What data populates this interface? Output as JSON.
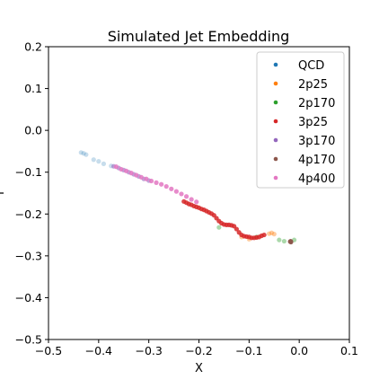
{
  "chart_data": {
    "type": "scatter",
    "title": "Simulated Jet Embedding",
    "xlabel": "X",
    "ylabel": "Y",
    "xlim": [
      -0.5,
      0.1
    ],
    "ylim": [
      -0.5,
      0.2
    ],
    "xticks": [
      -0.5,
      -0.4,
      -0.3,
      -0.2,
      -0.1,
      0.0,
      0.1
    ],
    "xtick_labels": [
      "−0.5",
      "−0.4",
      "−0.3",
      "−0.2",
      "−0.1",
      "0.0",
      "0.1"
    ],
    "yticks": [
      -0.5,
      -0.4,
      -0.3,
      -0.2,
      -0.1,
      0.0,
      0.1,
      0.2
    ],
    "ytick_labels": [
      "−0.5",
      "−0.4",
      "−0.3",
      "−0.2",
      "−0.1",
      "0.0",
      "0.1",
      "0.2"
    ],
    "grid": false,
    "legend_position": "top-right",
    "series": [
      {
        "name": "QCD",
        "color": "#1f77b4",
        "alpha": 0.25,
        "points": [
          [
            -0.435,
            -0.053
          ],
          [
            -0.43,
            -0.055
          ],
          [
            -0.425,
            -0.058
          ],
          [
            -0.41,
            -0.07
          ],
          [
            -0.4,
            -0.074
          ],
          [
            -0.39,
            -0.08
          ],
          [
            -0.375,
            -0.085
          ]
        ]
      },
      {
        "name": "2p25",
        "color": "#ff7f0e",
        "alpha": 0.4,
        "points": [
          [
            -0.06,
            -0.247
          ],
          [
            -0.055,
            -0.245
          ],
          [
            -0.05,
            -0.248
          ],
          [
            -0.1,
            -0.26
          ],
          [
            -0.115,
            -0.255
          ]
        ]
      },
      {
        "name": "2p170",
        "color": "#2ca02c",
        "alpha": 0.4,
        "points": [
          [
            -0.04,
            -0.262
          ],
          [
            -0.03,
            -0.265
          ],
          [
            -0.01,
            -0.262
          ],
          [
            -0.16,
            -0.232
          ],
          [
            -0.085,
            -0.255
          ]
        ]
      },
      {
        "name": "3p25",
        "color": "#d62728",
        "alpha": 0.85,
        "points": [
          [
            -0.23,
            -0.17
          ],
          [
            -0.225,
            -0.173
          ],
          [
            -0.22,
            -0.176
          ],
          [
            -0.215,
            -0.178
          ],
          [
            -0.21,
            -0.181
          ],
          [
            -0.205,
            -0.183
          ],
          [
            -0.2,
            -0.185
          ],
          [
            -0.195,
            -0.188
          ],
          [
            -0.19,
            -0.19
          ],
          [
            -0.185,
            -0.193
          ],
          [
            -0.18,
            -0.196
          ],
          [
            -0.175,
            -0.199
          ],
          [
            -0.17,
            -0.203
          ],
          [
            -0.165,
            -0.21
          ],
          [
            -0.16,
            -0.217
          ],
          [
            -0.155,
            -0.222
          ],
          [
            -0.15,
            -0.225
          ],
          [
            -0.145,
            -0.226
          ],
          [
            -0.14,
            -0.226
          ],
          [
            -0.135,
            -0.227
          ],
          [
            -0.13,
            -0.229
          ],
          [
            -0.125,
            -0.236
          ],
          [
            -0.12,
            -0.244
          ],
          [
            -0.115,
            -0.25
          ],
          [
            -0.11,
            -0.253
          ],
          [
            -0.105,
            -0.254
          ],
          [
            -0.1,
            -0.255
          ],
          [
            -0.095,
            -0.257
          ],
          [
            -0.09,
            -0.257
          ],
          [
            -0.085,
            -0.256
          ],
          [
            -0.08,
            -0.255
          ],
          [
            -0.075,
            -0.252
          ],
          [
            -0.07,
            -0.25
          ]
        ]
      },
      {
        "name": "3p170",
        "color": "#9467bd",
        "alpha": 0.6,
        "points": [
          [
            -0.37,
            -0.086
          ],
          [
            -0.36,
            -0.09
          ],
          [
            -0.35,
            -0.095
          ],
          [
            -0.34,
            -0.1
          ],
          [
            -0.33,
            -0.105
          ],
          [
            -0.32,
            -0.11
          ],
          [
            -0.31,
            -0.116
          ],
          [
            -0.3,
            -0.12
          ]
        ]
      },
      {
        "name": "4p170",
        "color": "#8c564b",
        "alpha": 0.9,
        "points": [
          [
            -0.017,
            -0.265
          ],
          [
            -0.0165,
            -0.267
          ],
          [
            -0.018,
            -0.266
          ]
        ]
      },
      {
        "name": "4p400",
        "color": "#e377c2",
        "alpha": 0.85,
        "points": [
          [
            -0.365,
            -0.087
          ],
          [
            -0.355,
            -0.093
          ],
          [
            -0.345,
            -0.097
          ],
          [
            -0.335,
            -0.102
          ],
          [
            -0.325,
            -0.107
          ],
          [
            -0.315,
            -0.112
          ],
          [
            -0.305,
            -0.116
          ],
          [
            -0.295,
            -0.121
          ],
          [
            -0.285,
            -0.125
          ],
          [
            -0.275,
            -0.129
          ],
          [
            -0.265,
            -0.134
          ],
          [
            -0.255,
            -0.14
          ],
          [
            -0.245,
            -0.146
          ],
          [
            -0.235,
            -0.152
          ],
          [
            -0.225,
            -0.158
          ],
          [
            -0.215,
            -0.165
          ],
          [
            -0.205,
            -0.171
          ]
        ]
      }
    ]
  }
}
